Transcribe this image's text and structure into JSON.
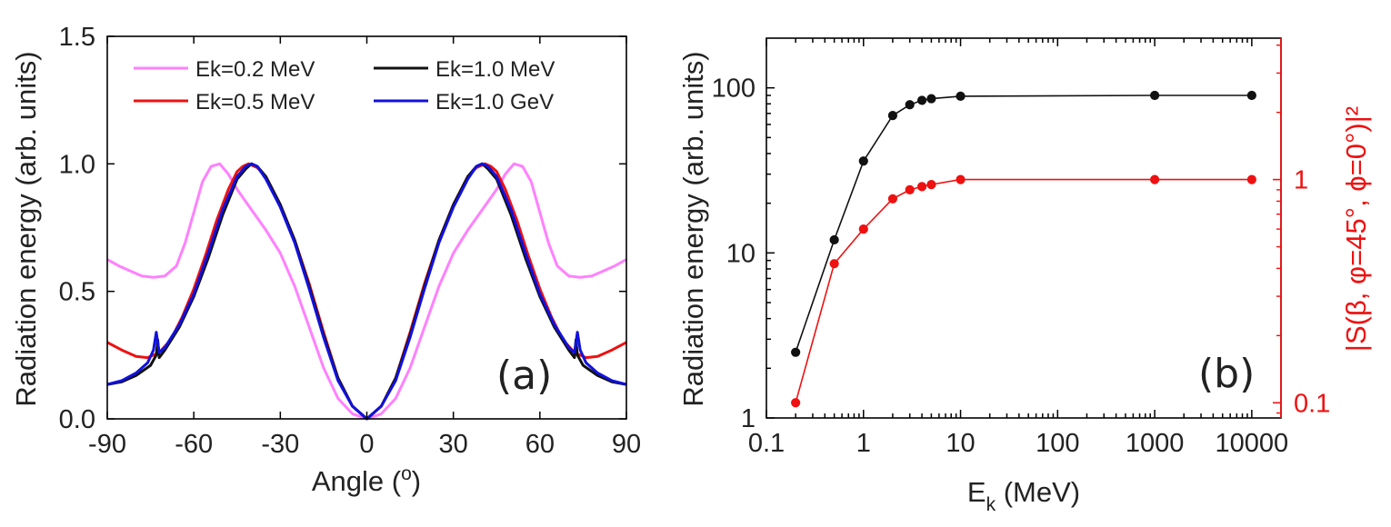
{
  "chart_data": [
    {
      "type": "line",
      "panel_label": "(a)",
      "xlabel": "Angle (",
      "xlabel_sup": "o",
      "xlabel_end": ")",
      "ylabel": "Radiation energy (arb. units)",
      "xlim": [
        -90,
        90
      ],
      "ylim": [
        0,
        1.5
      ],
      "xticks": [
        -90,
        -60,
        -30,
        0,
        30,
        60,
        90
      ],
      "xtick_labels": [
        "-90",
        "-60",
        "-30",
        "0",
        "30",
        "60",
        "90"
      ],
      "yticks": [
        0,
        0.5,
        1.0,
        1.5
      ],
      "ytick_labels": [
        "0.0",
        "0.5",
        "1.0",
        "1.5"
      ],
      "legend_position": "top",
      "series": [
        {
          "name": "Ek=0.2 MeV",
          "color": "#ff80ff",
          "x": [
            0,
            5,
            10,
            15,
            20,
            25,
            30,
            35,
            40,
            45,
            48,
            51,
            54,
            57,
            60,
            63,
            66,
            70,
            74,
            78,
            82,
            86,
            90
          ],
          "y": [
            0.0,
            0.02,
            0.08,
            0.2,
            0.36,
            0.52,
            0.65,
            0.74,
            0.82,
            0.9,
            0.96,
            1.0,
            0.99,
            0.93,
            0.81,
            0.69,
            0.6,
            0.56,
            0.555,
            0.56,
            0.58,
            0.6,
            0.625
          ]
        },
        {
          "name": "Ek=0.5 MeV",
          "color": "#ee1111",
          "x": [
            0,
            5,
            10,
            15,
            20,
            25,
            30,
            35,
            38,
            41,
            43,
            45,
            48,
            52,
            56,
            60,
            64,
            68,
            72,
            76,
            80,
            85,
            90
          ],
          "y": [
            0.0,
            0.05,
            0.16,
            0.34,
            0.53,
            0.7,
            0.84,
            0.95,
            0.985,
            1.0,
            0.99,
            0.97,
            0.9,
            0.78,
            0.64,
            0.51,
            0.4,
            0.31,
            0.26,
            0.24,
            0.245,
            0.27,
            0.3
          ]
        },
        {
          "name": "Ek=1.0 MeV",
          "color": "#111111",
          "x": [
            0,
            5,
            10,
            15,
            20,
            25,
            30,
            35,
            38,
            40,
            42,
            45,
            50,
            55,
            60,
            65,
            70,
            72,
            72.5,
            73,
            75,
            80,
            85,
            90
          ],
          "y": [
            0.0,
            0.05,
            0.16,
            0.33,
            0.52,
            0.7,
            0.84,
            0.95,
            0.99,
            1.0,
            0.98,
            0.94,
            0.8,
            0.63,
            0.48,
            0.36,
            0.27,
            0.24,
            0.31,
            0.25,
            0.21,
            0.17,
            0.145,
            0.135
          ]
        },
        {
          "name": "Ek=1.0 GeV",
          "color": "#1111dd",
          "x": [
            0,
            5,
            10,
            15,
            20,
            25,
            30,
            35,
            38,
            40,
            42,
            45,
            50,
            55,
            60,
            65,
            70,
            72,
            73,
            74,
            76,
            80,
            85,
            90
          ],
          "y": [
            0.0,
            0.05,
            0.15,
            0.32,
            0.51,
            0.69,
            0.83,
            0.94,
            0.99,
            1.0,
            0.99,
            0.95,
            0.82,
            0.65,
            0.49,
            0.37,
            0.28,
            0.26,
            0.34,
            0.27,
            0.22,
            0.18,
            0.15,
            0.135
          ]
        }
      ]
    },
    {
      "type": "scatter",
      "panel_label": "(b)",
      "xlabel": "E",
      "xlabel_sub": "k",
      "xlabel_end": " (MeV)",
      "ylabel": "Radiation energy (arb. units)",
      "y2label": "|S(β, φ=45°, ϕ=0°)|²",
      "xscale": "log",
      "yscale": "log",
      "xlim": [
        0.1,
        20000
      ],
      "ylim": [
        1,
        200
      ],
      "y2lim": [
        0.0855,
        4.3
      ],
      "xticks": [
        0.1,
        1,
        10,
        100,
        1000,
        10000
      ],
      "xtick_labels": [
        "0.1",
        "1",
        "10",
        "100",
        "1000",
        "10000"
      ],
      "yticks": [
        1,
        10,
        100
      ],
      "ytick_labels": [
        "1",
        "10",
        "100"
      ],
      "y2ticks": [
        0.1,
        1
      ],
      "y2tick_labels": [
        "0.1",
        "1"
      ],
      "y2_color": "#ee1111",
      "series": [
        {
          "name": "Radiation energy",
          "axis": "left",
          "color": "#111111",
          "x": [
            0.2,
            0.5,
            1,
            2,
            3,
            4,
            5,
            10,
            1000,
            10000
          ],
          "y": [
            2.5,
            12,
            36,
            68,
            79,
            84,
            86,
            89,
            90,
            90
          ]
        },
        {
          "name": "|S|^2",
          "axis": "right",
          "color": "#ee1111",
          "x": [
            0.2,
            0.5,
            1,
            2,
            3,
            4,
            5,
            10,
            1000,
            10000
          ],
          "y": [
            0.1,
            0.42,
            0.6,
            0.82,
            0.9,
            0.93,
            0.95,
            1.0,
            1.0,
            1.0
          ]
        }
      ]
    }
  ]
}
